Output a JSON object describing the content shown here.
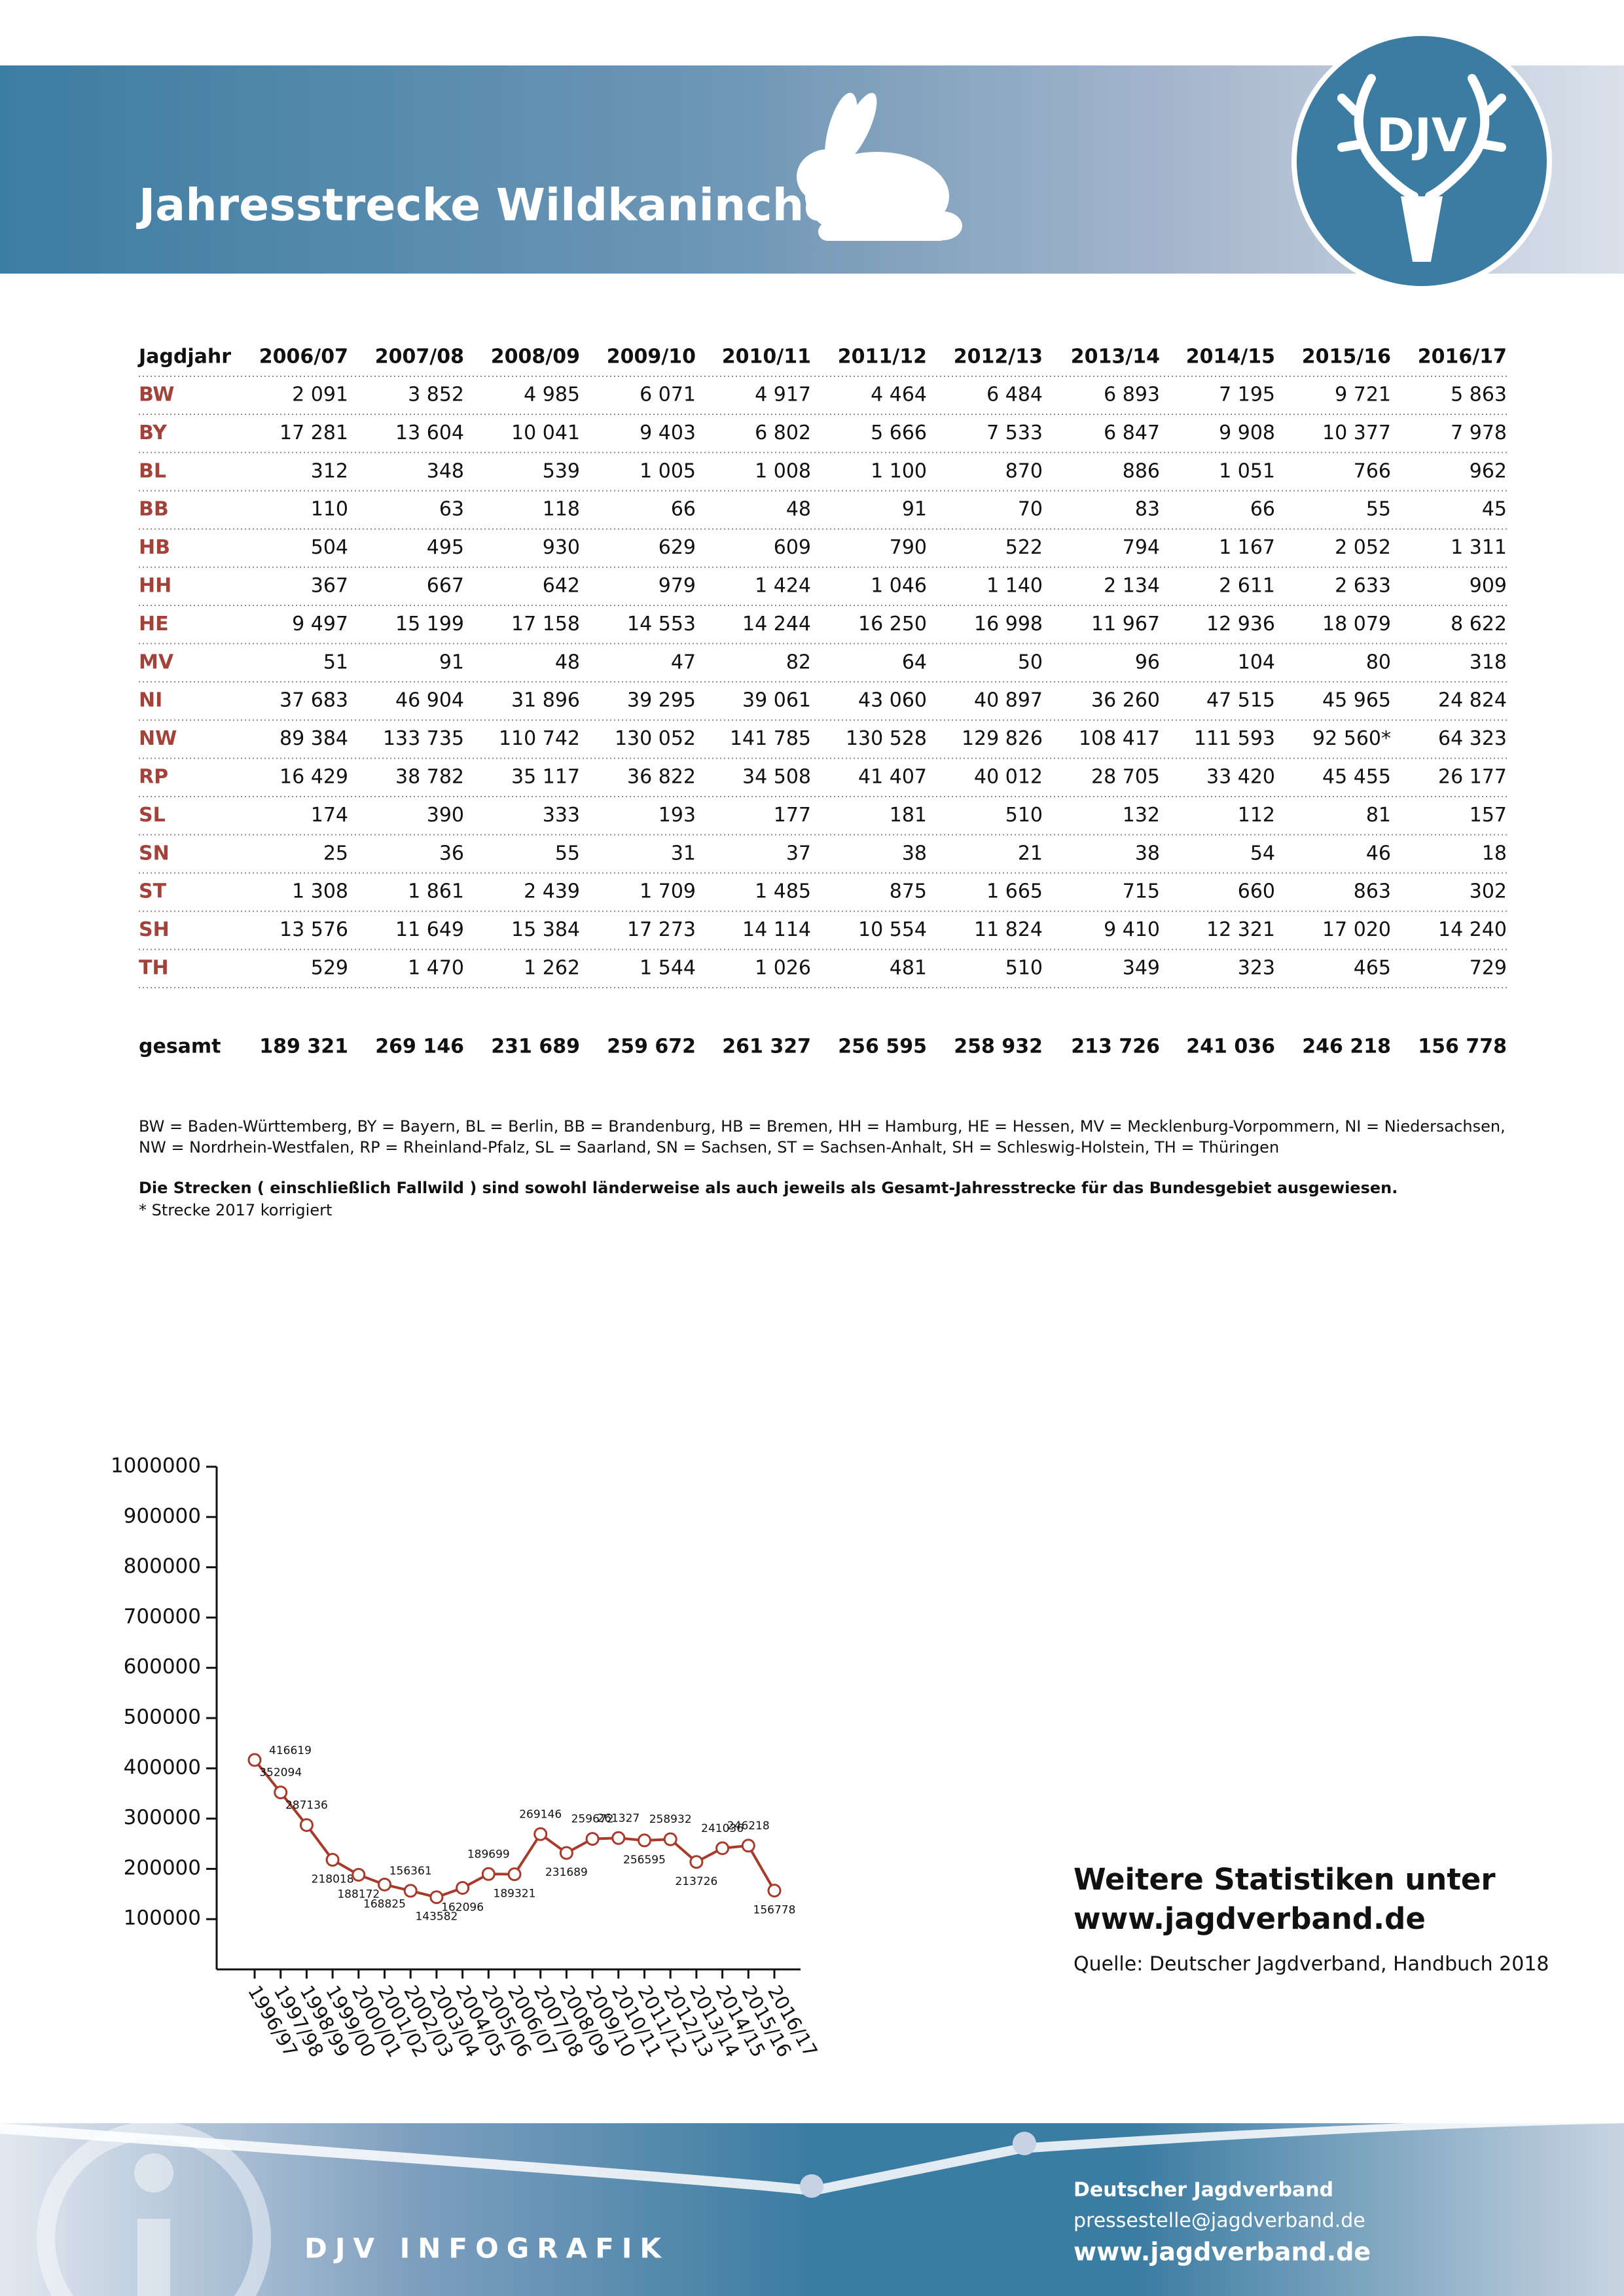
{
  "header": {
    "title": "Jahresstrecke Wildkaninchen",
    "logo": "DJV"
  },
  "table": {
    "columns": [
      "Jagdjahr",
      "2006/07",
      "2007/08",
      "2008/09",
      "2009/10",
      "2010/11",
      "2011/12",
      "2012/13",
      "2013/14",
      "2014/15",
      "2015/16",
      "2016/17"
    ],
    "rows": [
      [
        "BW",
        "2 091",
        "3 852",
        "4 985",
        "6 071",
        "4 917",
        "4 464",
        "6 484",
        "6 893",
        "7 195",
        "9 721",
        "5 863"
      ],
      [
        "BY",
        "17 281",
        "13 604",
        "10 041",
        "9 403",
        "6 802",
        "5 666",
        "7 533",
        "6 847",
        "9 908",
        "10 377",
        "7 978"
      ],
      [
        "BL",
        "312",
        "348",
        "539",
        "1 005",
        "1 008",
        "1 100",
        "870",
        "886",
        "1 051",
        "766",
        "962"
      ],
      [
        "BB",
        "110",
        "63",
        "118",
        "66",
        "48",
        "91",
        "70",
        "83",
        "66",
        "55",
        "45"
      ],
      [
        "HB",
        "504",
        "495",
        "930",
        "629",
        "609",
        "790",
        "522",
        "794",
        "1 167",
        "2 052",
        "1 311"
      ],
      [
        "HH",
        "367",
        "667",
        "642",
        "979",
        "1 424",
        "1 046",
        "1 140",
        "2 134",
        "2 611",
        "2 633",
        "909"
      ],
      [
        "HE",
        "9 497",
        "15 199",
        "17 158",
        "14 553",
        "14 244",
        "16 250",
        "16 998",
        "11 967",
        "12 936",
        "18 079",
        "8 622"
      ],
      [
        "MV",
        "51",
        "91",
        "48",
        "47",
        "82",
        "64",
        "50",
        "96",
        "104",
        "80",
        "318"
      ],
      [
        "NI",
        "37 683",
        "46 904",
        "31 896",
        "39 295",
        "39 061",
        "43 060",
        "40 897",
        "36 260",
        "47 515",
        "45 965",
        "24 824"
      ],
      [
        "NW",
        "89 384",
        "133 735",
        "110 742",
        "130 052",
        "141 785",
        "130 528",
        "129 826",
        "108 417",
        "111 593",
        "92 560*",
        "64 323"
      ],
      [
        "RP",
        "16 429",
        "38 782",
        "35 117",
        "36 822",
        "34 508",
        "41 407",
        "40 012",
        "28 705",
        "33 420",
        "45 455",
        "26 177"
      ],
      [
        "SL",
        "174",
        "390",
        "333",
        "193",
        "177",
        "181",
        "510",
        "132",
        "112",
        "81",
        "157"
      ],
      [
        "SN",
        "25",
        "36",
        "55",
        "31",
        "37",
        "38",
        "21",
        "38",
        "54",
        "46",
        "18"
      ],
      [
        "ST",
        "1 308",
        "1 861",
        "2 439",
        "1 709",
        "1 485",
        "875",
        "1 665",
        "715",
        "660",
        "863",
        "302"
      ],
      [
        "SH",
        "13 576",
        "11 649",
        "15 384",
        "17 273",
        "14 114",
        "10 554",
        "11 824",
        "9 410",
        "12 321",
        "17 020",
        "14 240"
      ],
      [
        "TH",
        "529",
        "1 470",
        "1 262",
        "1 544",
        "1 026",
        "481",
        "510",
        "349",
        "323",
        "465",
        "729"
      ]
    ],
    "total": [
      "gesamt",
      "189 321",
      "269 146",
      "231 689",
      "259 672",
      "261 327",
      "256 595",
      "258 932",
      "213 726",
      "241 036",
      "246 218",
      "156 778"
    ]
  },
  "notes": {
    "legend": [
      "BW = Baden-Württemberg, BY = Bayern, BL = Berlin, BB = Brandenburg, HB = Bremen, HH = Hamburg, HE = Hessen, MV = Mecklenburg-Vorpommern, NI = Niedersachsen,",
      "NW = Nordrhein-Westfalen, RP = Rheinland-Pfalz, SL = Saarland, SN = Sachsen, ST = Sachsen-Anhalt, SH = Schleswig-Holstein, TH = Thüringen"
    ],
    "bold": "Die Strecken ( einschließlich Fallwild ) sind sowohl länderweise als auch jeweils als Gesamt-Jahresstrecke für das Bundesgebiet ausgewiesen.",
    "star": "* Strecke 2017 korrigiert"
  },
  "chart_data": {
    "type": "line",
    "categories": [
      "1996/97",
      "1997/98",
      "1998/99",
      "1999/00",
      "2000/01",
      "2001/02",
      "2002/03",
      "2003/04",
      "2004/05",
      "2005/06",
      "2006/07",
      "2007/08",
      "2008/09",
      "2009/10",
      "2010/11",
      "2011/12",
      "2012/13",
      "2013/14",
      "2014/15",
      "2015/16",
      "2016/17"
    ],
    "values": [
      416619,
      352094,
      287136,
      218018,
      188172,
      168825,
      156361,
      143582,
      162096,
      189699,
      189321,
      269146,
      231689,
      259672,
      261327,
      256595,
      258932,
      213726,
      241036,
      246218,
      156778
    ],
    "color": "#a63a2b",
    "ylim": [
      0,
      1000000
    ],
    "yticks": [
      100000,
      200000,
      300000,
      400000,
      500000,
      600000,
      700000,
      800000,
      900000,
      1000000
    ]
  },
  "side": {
    "heading": [
      "Weitere Statistiken unter",
      "www.jagdverband.de"
    ],
    "source": "Quelle: Deutscher Jagdverband, Handbuch 2018"
  },
  "footer": {
    "brand": "DJV INFOGRAFIK",
    "org": "Deutscher Jagdverband",
    "email": "pressestelle@jagdverband.de",
    "web": "www.jagdverband.de"
  }
}
